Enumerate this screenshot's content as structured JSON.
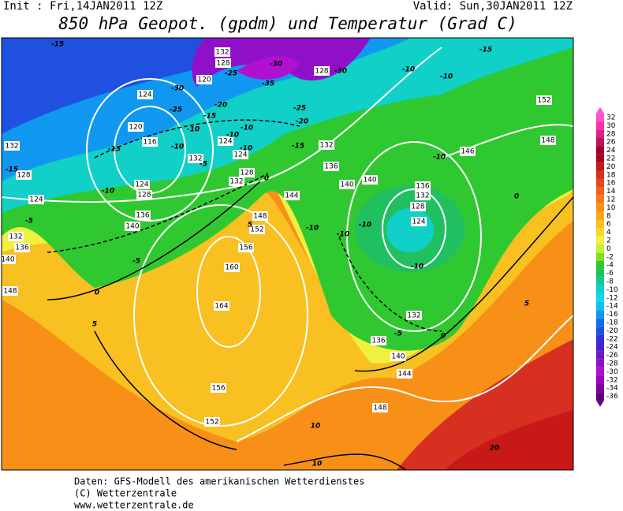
{
  "header": {
    "init": "Init : Fri,14JAN2011 12Z",
    "valid": "Valid: Sun,30JAN2011 12Z",
    "title": "850 hPa Geopot. (gpdm) und Temperatur (Grad C)"
  },
  "colorbar": {
    "labels": [
      32,
      30,
      28,
      26,
      24,
      22,
      20,
      18,
      16,
      14,
      12,
      10,
      8,
      6,
      4,
      2,
      0,
      -2,
      -4,
      -6,
      -8,
      -10,
      -12,
      -14,
      -16,
      -18,
      -20,
      -22,
      -24,
      -26,
      -28,
      -30,
      -32,
      -34,
      -36
    ],
    "colors": [
      "#ff50d0",
      "#ff2fa8",
      "#e0207f",
      "#c0105a",
      "#a00030",
      "#b00020",
      "#c81818",
      "#d83020",
      "#e84820",
      "#f06020",
      "#f87818",
      "#f89018",
      "#f8a818",
      "#f8c020",
      "#f8d828",
      "#f0f040",
      "#c8f030",
      "#80e020",
      "#30c830",
      "#20c060",
      "#10c898",
      "#10d0c8",
      "#10d8e8",
      "#10c0f0",
      "#1098f0",
      "#1070e8",
      "#2050e0",
      "#3030d8",
      "#5020d0",
      "#7018c8",
      "#9010c8",
      "#b010d0",
      "#a000c0",
      "#8000a0",
      "#600080"
    ]
  },
  "map": {
    "geopotential_labels": [
      132,
      128,
      120,
      124,
      120,
      116,
      132,
      128,
      124,
      132,
      136,
      140,
      148,
      124,
      124,
      128,
      132,
      132,
      124,
      128,
      136,
      140,
      144,
      148,
      152,
      156,
      160,
      164,
      156,
      152,
      148,
      144,
      140,
      136,
      132,
      136,
      132,
      140,
      140,
      136,
      132,
      128,
      124,
      146,
      148,
      152,
      128
    ],
    "temperature_labels": [
      -15,
      -30,
      -30,
      -35,
      -25,
      -25,
      -30,
      -20,
      -15,
      -10,
      -10,
      -10,
      -10,
      -5,
      -10,
      -25,
      -20,
      -15,
      -15,
      -15,
      -10,
      -5,
      -5,
      0,
      5,
      5,
      0,
      0,
      -10,
      -10,
      -10,
      -10,
      -5,
      0,
      5,
      10,
      10,
      20,
      -10,
      -10,
      -10,
      -15
    ]
  },
  "footer": {
    "lines": [
      "Daten: GFS-Modell des amerikanischen Wetterdienstes",
      "(C) Wetterzentrale",
      "www.wetterzentrale.de"
    ]
  }
}
